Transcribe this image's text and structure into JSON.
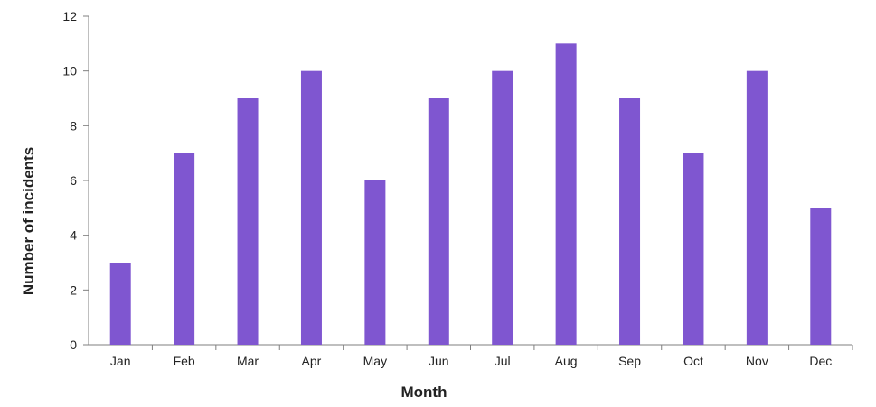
{
  "chart_data": {
    "type": "bar",
    "categories": [
      "Jan",
      "Feb",
      "Mar",
      "Apr",
      "May",
      "Jun",
      "Jul",
      "Aug",
      "Sep",
      "Oct",
      "Nov",
      "Dec"
    ],
    "values": [
      3,
      7,
      9,
      10,
      6,
      9,
      10,
      11,
      9,
      7,
      10,
      5
    ],
    "title": "",
    "xlabel": "Month",
    "ylabel": "Number of incidents",
    "ylim": [
      0,
      12
    ],
    "yticks": [
      "0",
      "2",
      "4",
      "6",
      "8",
      "10",
      "12"
    ],
    "grid": false,
    "legend": "none",
    "colors": {
      "bar": "#7f56d0",
      "axis": "#7f7f7f",
      "text": "#222222"
    }
  }
}
